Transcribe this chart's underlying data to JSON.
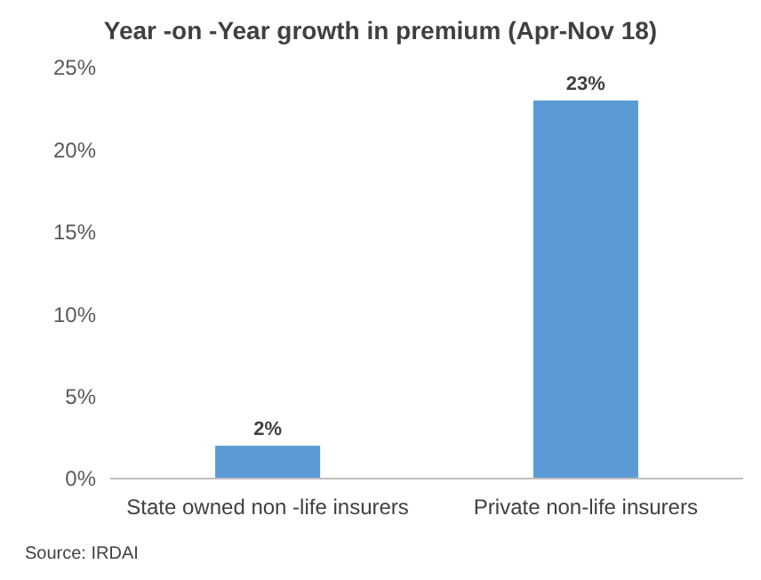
{
  "chart_data": {
    "type": "bar",
    "title": "Year -on -Year growth in premium (Apr-Nov 18)",
    "categories": [
      "State owned non -life insurers",
      "Private non-life insurers"
    ],
    "values": [
      2,
      23
    ],
    "color": "#5b9bd5",
    "ylim": [
      0,
      25
    ],
    "yticks": [
      {
        "value": 0,
        "label": "0%"
      },
      {
        "value": 5,
        "label": "5%"
      },
      {
        "value": 10,
        "label": "10%"
      },
      {
        "value": 15,
        "label": "15%"
      },
      {
        "value": 20,
        "label": "20%"
      },
      {
        "value": 25,
        "label": "25%"
      }
    ],
    "value_labels": [
      "2%",
      "23%"
    ],
    "grid": false,
    "annotations": [
      "Source: IRDAI"
    ]
  }
}
